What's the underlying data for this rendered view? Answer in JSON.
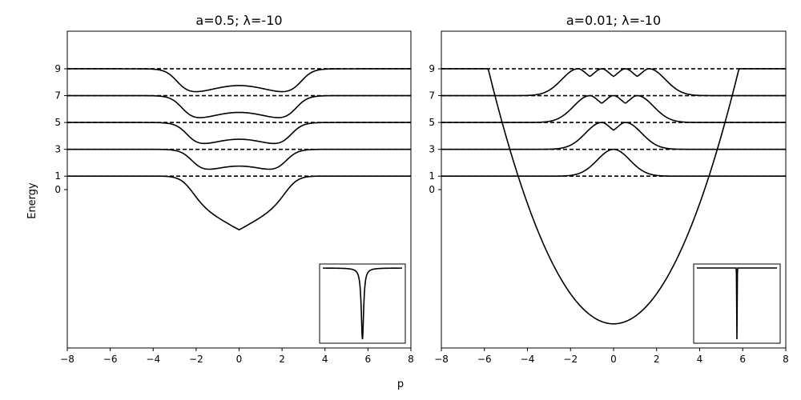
{
  "chart_data": [
    {
      "type": "line",
      "title": "a=0.5; λ=-10",
      "a": 0.5,
      "lambda": -10,
      "xlim": [
        -8,
        8
      ],
      "ylim": [
        -11.8,
        11.8
      ],
      "xticks": [
        -8,
        -6,
        -4,
        -2,
        0,
        2,
        4,
        6,
        8
      ],
      "yticks": [
        0,
        1,
        3,
        5,
        7,
        9
      ],
      "dashed_levels": [
        1,
        3,
        5,
        7,
        9
      ],
      "ground_min": -3.0,
      "inset": {
        "type": "line",
        "shape": "narrow-dip"
      }
    },
    {
      "type": "line",
      "title": "a=0.01; λ=-10",
      "a": 0.01,
      "lambda": -10,
      "xlim": [
        -8,
        8
      ],
      "ylim": [
        -11.8,
        11.8
      ],
      "xticks": [
        -8,
        -6,
        -4,
        -2,
        0,
        2,
        4,
        6,
        8
      ],
      "yticks": [
        0,
        1,
        3,
        5,
        7,
        9
      ],
      "dashed_levels": [
        1,
        3,
        5,
        7,
        9
      ],
      "ground_min": -9.9,
      "inset": {
        "type": "line",
        "shape": "sharp-spike"
      }
    }
  ],
  "labels": {
    "xlabel": "p",
    "ylabel": "Energy"
  }
}
